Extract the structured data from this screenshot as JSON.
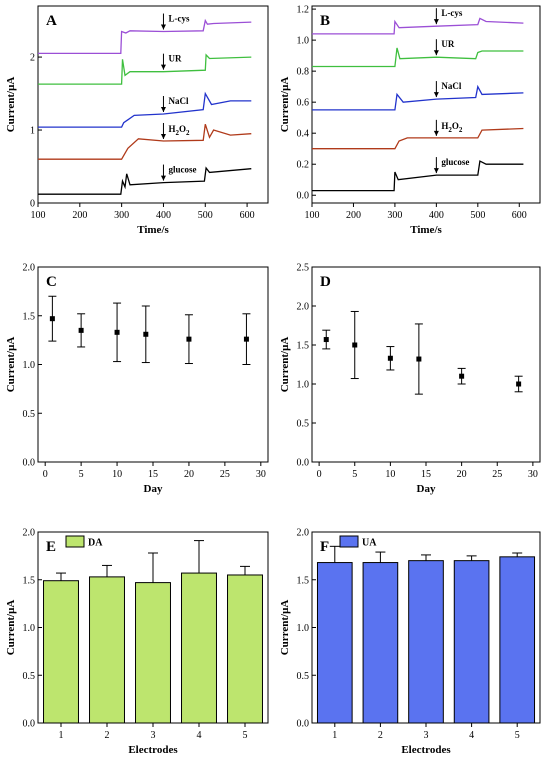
{
  "figure": {
    "panels": {
      "A": "A",
      "B": "B",
      "C": "C",
      "D": "D",
      "E": "E",
      "F": "F"
    }
  },
  "chart_data": [
    {
      "panel": "A",
      "type": "line",
      "xlabel": "Time/s",
      "ylabel": "Current/μA",
      "xlim": [
        100,
        650
      ],
      "xticks": [
        "100",
        "200",
        "300",
        "400",
        "500",
        "600"
      ],
      "ylim": [
        0,
        2.7
      ],
      "yticks": [
        "0",
        "1",
        "2"
      ],
      "annotations": [
        {
          "label": "L-cys",
          "x": 400
        },
        {
          "label": "UR",
          "x": 400
        },
        {
          "label": "NaCl",
          "x": 400
        },
        {
          "label": "H2O2",
          "x": 400
        },
        {
          "label": "glucose",
          "x": 400
        }
      ],
      "series": [
        {
          "color": "#9b4fd6",
          "points": [
            [
              100,
              2.05
            ],
            [
              298,
              2.05
            ],
            [
              300,
              2.35
            ],
            [
              310,
              2.33
            ],
            [
              320,
              2.36
            ],
            [
              400,
              2.35
            ],
            [
              495,
              2.36
            ],
            [
              500,
              2.5
            ],
            [
              505,
              2.45
            ],
            [
              520,
              2.46
            ],
            [
              610,
              2.48
            ]
          ]
        },
        {
          "color": "#3fbf3f",
          "points": [
            [
              100,
              1.63
            ],
            [
              300,
              1.63
            ],
            [
              302,
              1.97
            ],
            [
              308,
              1.75
            ],
            [
              320,
              1.8
            ],
            [
              400,
              1.8
            ],
            [
              500,
              1.82
            ],
            [
              502,
              2.03
            ],
            [
              510,
              1.98
            ],
            [
              610,
              2.0
            ]
          ]
        },
        {
          "color": "#2233cc",
          "points": [
            [
              100,
              1.04
            ],
            [
              300,
              1.04
            ],
            [
              305,
              1.1
            ],
            [
              330,
              1.2
            ],
            [
              400,
              1.22
            ],
            [
              495,
              1.28
            ],
            [
              500,
              1.5
            ],
            [
              515,
              1.35
            ],
            [
              560,
              1.4
            ],
            [
              610,
              1.4
            ]
          ]
        },
        {
          "color": "#b03a1a",
          "points": [
            [
              100,
              0.6
            ],
            [
              300,
              0.6
            ],
            [
              315,
              0.75
            ],
            [
              340,
              0.88
            ],
            [
              400,
              0.85
            ],
            [
              495,
              0.86
            ],
            [
              500,
              1.08
            ],
            [
              510,
              0.9
            ],
            [
              520,
              1.0
            ],
            [
              560,
              0.93
            ],
            [
              610,
              0.95
            ]
          ]
        },
        {
          "color": "#000000",
          "points": [
            [
              100,
              0.12
            ],
            [
              298,
              0.12
            ],
            [
              302,
              0.3
            ],
            [
              308,
              0.22
            ],
            [
              312,
              0.4
            ],
            [
              320,
              0.25
            ],
            [
              400,
              0.28
            ],
            [
              498,
              0.3
            ],
            [
              502,
              0.48
            ],
            [
              510,
              0.42
            ],
            [
              610,
              0.47
            ]
          ]
        }
      ]
    },
    {
      "panel": "B",
      "type": "line",
      "xlabel": "Time/s",
      "ylabel": "Current/μA",
      "xlim": [
        100,
        650
      ],
      "xticks": [
        "100",
        "200",
        "300",
        "400",
        "500",
        "600"
      ],
      "ylim": [
        -0.05,
        1.22
      ],
      "yticks": [
        "0.0",
        "0.2",
        "0.4",
        "0.6",
        "0.8",
        "1.0",
        "1.2"
      ],
      "annotations": [
        {
          "label": "L-cys",
          "x": 400
        },
        {
          "label": "UR",
          "x": 400
        },
        {
          "label": "NaCl",
          "x": 400
        },
        {
          "label": "H2O2",
          "x": 400
        },
        {
          "label": "glucose",
          "x": 400
        }
      ],
      "series": [
        {
          "color": "#9b4fd6",
          "points": [
            [
              100,
              1.04
            ],
            [
              298,
              1.04
            ],
            [
              300,
              1.12
            ],
            [
              310,
              1.08
            ],
            [
              400,
              1.09
            ],
            [
              500,
              1.1
            ],
            [
              505,
              1.14
            ],
            [
              520,
              1.12
            ],
            [
              610,
              1.11
            ]
          ]
        },
        {
          "color": "#3fbf3f",
          "points": [
            [
              100,
              0.83
            ],
            [
              300,
              0.83
            ],
            [
              305,
              0.95
            ],
            [
              312,
              0.88
            ],
            [
              400,
              0.89
            ],
            [
              495,
              0.88
            ],
            [
              500,
              0.92
            ],
            [
              510,
              0.93
            ],
            [
              610,
              0.93
            ]
          ]
        },
        {
          "color": "#2233cc",
          "points": [
            [
              100,
              0.55
            ],
            [
              300,
              0.55
            ],
            [
              305,
              0.65
            ],
            [
              320,
              0.6
            ],
            [
              400,
              0.62
            ],
            [
              495,
              0.63
            ],
            [
              500,
              0.7
            ],
            [
              510,
              0.65
            ],
            [
              610,
              0.66
            ]
          ]
        },
        {
          "color": "#b03a1a",
          "points": [
            [
              100,
              0.3
            ],
            [
              300,
              0.3
            ],
            [
              310,
              0.35
            ],
            [
              330,
              0.37
            ],
            [
              400,
              0.37
            ],
            [
              500,
              0.37
            ],
            [
              510,
              0.42
            ],
            [
              610,
              0.43
            ]
          ]
        },
        {
          "color": "#000000",
          "points": [
            [
              100,
              0.03
            ],
            [
              298,
              0.03
            ],
            [
              300,
              0.15
            ],
            [
              308,
              0.1
            ],
            [
              400,
              0.13
            ],
            [
              500,
              0.13
            ],
            [
              505,
              0.22
            ],
            [
              520,
              0.2
            ],
            [
              610,
              0.2
            ]
          ]
        }
      ]
    },
    {
      "panel": "C",
      "type": "scatter",
      "xlabel": "Day",
      "ylabel": "Current/μA",
      "xlim": [
        -1,
        31
      ],
      "xticks": [
        "0",
        "5",
        "10",
        "15",
        "20",
        "25",
        "30"
      ],
      "ylim": [
        0,
        2.0
      ],
      "yticks": [
        "0.0",
        "0.5",
        "1.0",
        "1.5",
        "2.0"
      ],
      "x": [
        1,
        5,
        10,
        14,
        20,
        28
      ],
      "values": [
        1.47,
        1.35,
        1.33,
        1.31,
        1.26,
        1.26
      ],
      "errors": [
        0.23,
        0.17,
        0.3,
        0.29,
        0.25,
        0.26
      ]
    },
    {
      "panel": "D",
      "type": "scatter",
      "xlabel": "Day",
      "ylabel": "Current/μA",
      "xlim": [
        -1,
        31
      ],
      "xticks": [
        "0",
        "5",
        "10",
        "15",
        "20",
        "25",
        "30"
      ],
      "ylim": [
        0,
        2.5
      ],
      "yticks": [
        "0.0",
        "0.5",
        "1.0",
        "1.5",
        "2.0",
        "2.5"
      ],
      "x": [
        1,
        5,
        10,
        14,
        20,
        28
      ],
      "values": [
        1.57,
        1.5,
        1.33,
        1.32,
        1.1,
        1.0
      ],
      "errors": [
        0.12,
        0.43,
        0.15,
        0.45,
        0.1,
        0.1
      ]
    },
    {
      "panel": "E",
      "type": "bar",
      "xlabel": "Electrodes",
      "ylabel": "Current/μA",
      "categories": [
        "1",
        "2",
        "3",
        "4",
        "5"
      ],
      "ylim": [
        0,
        2.0
      ],
      "yticks": [
        "0.0",
        "0.5",
        "1.0",
        "1.5",
        "2.0"
      ],
      "series": [
        {
          "name": "DA",
          "color": "#bde56e",
          "values": [
            1.49,
            1.53,
            1.47,
            1.57,
            1.55
          ],
          "errors": [
            0.08,
            0.12,
            0.31,
            0.34,
            0.09
          ]
        }
      ],
      "legend": "top-left"
    },
    {
      "panel": "F",
      "type": "bar",
      "xlabel": "Electrodes",
      "ylabel": "Current/μA",
      "categories": [
        "1",
        "2",
        "3",
        "4",
        "5"
      ],
      "ylim": [
        0,
        2.0
      ],
      "yticks": [
        "0.0",
        "0.5",
        "1.0",
        "1.5",
        "2.0"
      ],
      "series": [
        {
          "name": "UA",
          "color": "#5a73f0",
          "values": [
            1.68,
            1.68,
            1.7,
            1.7,
            1.74
          ],
          "errors": [
            0.17,
            0.11,
            0.06,
            0.05,
            0.04
          ]
        }
      ],
      "legend": "top-left"
    }
  ]
}
